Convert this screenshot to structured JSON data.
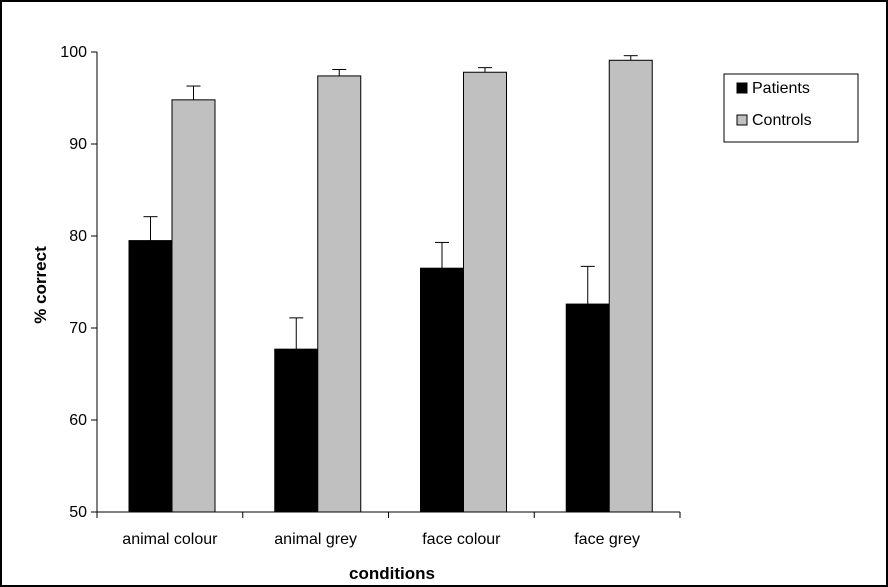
{
  "chart_data": {
    "type": "bar",
    "title": "",
    "xlabel": "conditions",
    "ylabel": "% correct",
    "ylim": [
      50,
      100
    ],
    "yticks": [
      50,
      60,
      70,
      80,
      90,
      100
    ],
    "categories": [
      "animal colour",
      "animal grey",
      "face colour",
      "face grey"
    ],
    "series": [
      {
        "name": "Patients",
        "color": "#000000",
        "values": [
          79.5,
          67.7,
          76.5,
          72.6
        ],
        "error_upper": [
          2.6,
          3.4,
          2.8,
          4.1
        ]
      },
      {
        "name": "Controls",
        "color": "#c0c0c0",
        "values": [
          94.8,
          97.4,
          97.8,
          99.1
        ],
        "error_upper": [
          1.5,
          0.7,
          0.5,
          0.5
        ]
      }
    ],
    "legend_position": "top-right",
    "grid": false
  }
}
